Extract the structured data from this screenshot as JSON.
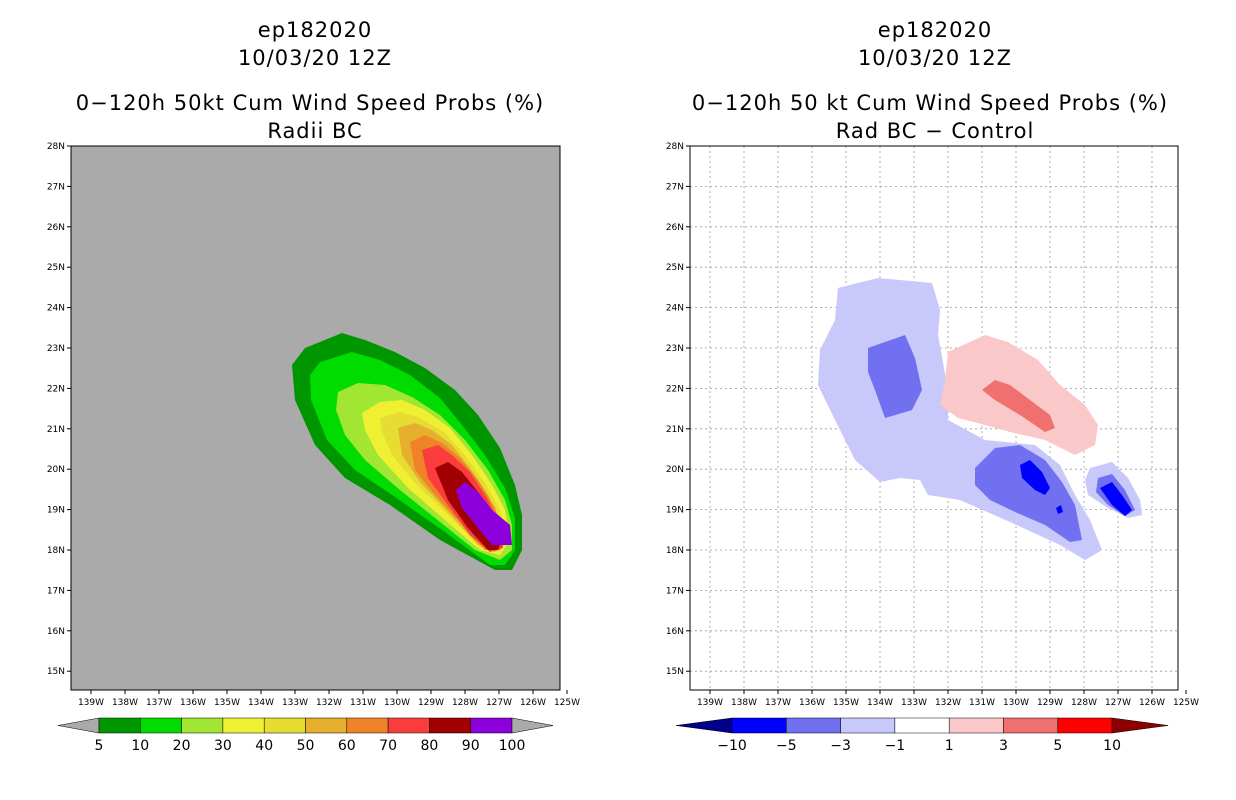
{
  "left_panel": {
    "title_line1": "ep182020",
    "title_line2": "10/03/20 12Z",
    "title_line3": "0−120h 50kt Cum Wind Speed Probs (%)",
    "title_line4": "Radii BC",
    "background_color": "#aaaaaa",
    "colorbar": {
      "labels": [
        "5",
        "10",
        "20",
        "30",
        "40",
        "50",
        "60",
        "70",
        "80",
        "90",
        "100"
      ],
      "colors": [
        "#009600",
        "#00dc00",
        "#a0e632",
        "#f0f032",
        "#e6dc32",
        "#e6af2d",
        "#f08228",
        "#fa3c3c",
        "#a00000",
        "#8c00dc"
      ]
    }
  },
  "right_panel": {
    "title_line1": "ep182020",
    "title_line2": "10/03/20 12Z",
    "title_line3": "0−120h 50 kt Cum Wind Speed Probs (%)",
    "title_line4": "Rad BC − Control",
    "background_color": "#ffffff",
    "colorbar": {
      "labels": [
        "−10",
        "−5",
        "−3",
        "−1",
        "1",
        "3",
        "5",
        "10"
      ],
      "colors": [
        "#00008c",
        "#0000ff",
        "#7070f0",
        "#c8c8fa",
        "#ffffff",
        "#fac8c8",
        "#f07070",
        "#ff0000",
        "#8c0000"
      ]
    }
  },
  "axes": {
    "lat_labels": [
      "28N",
      "27N",
      "26N",
      "25N",
      "24N",
      "23N",
      "22N",
      "21N",
      "20N",
      "19N",
      "18N",
      "17N",
      "16N",
      "15N"
    ],
    "lon_labels": [
      "139W",
      "138W",
      "137W",
      "136W",
      "135W",
      "134W",
      "133W",
      "132W",
      "131W",
      "130W",
      "129W",
      "128W",
      "127W",
      "126W",
      "125W"
    ]
  }
}
